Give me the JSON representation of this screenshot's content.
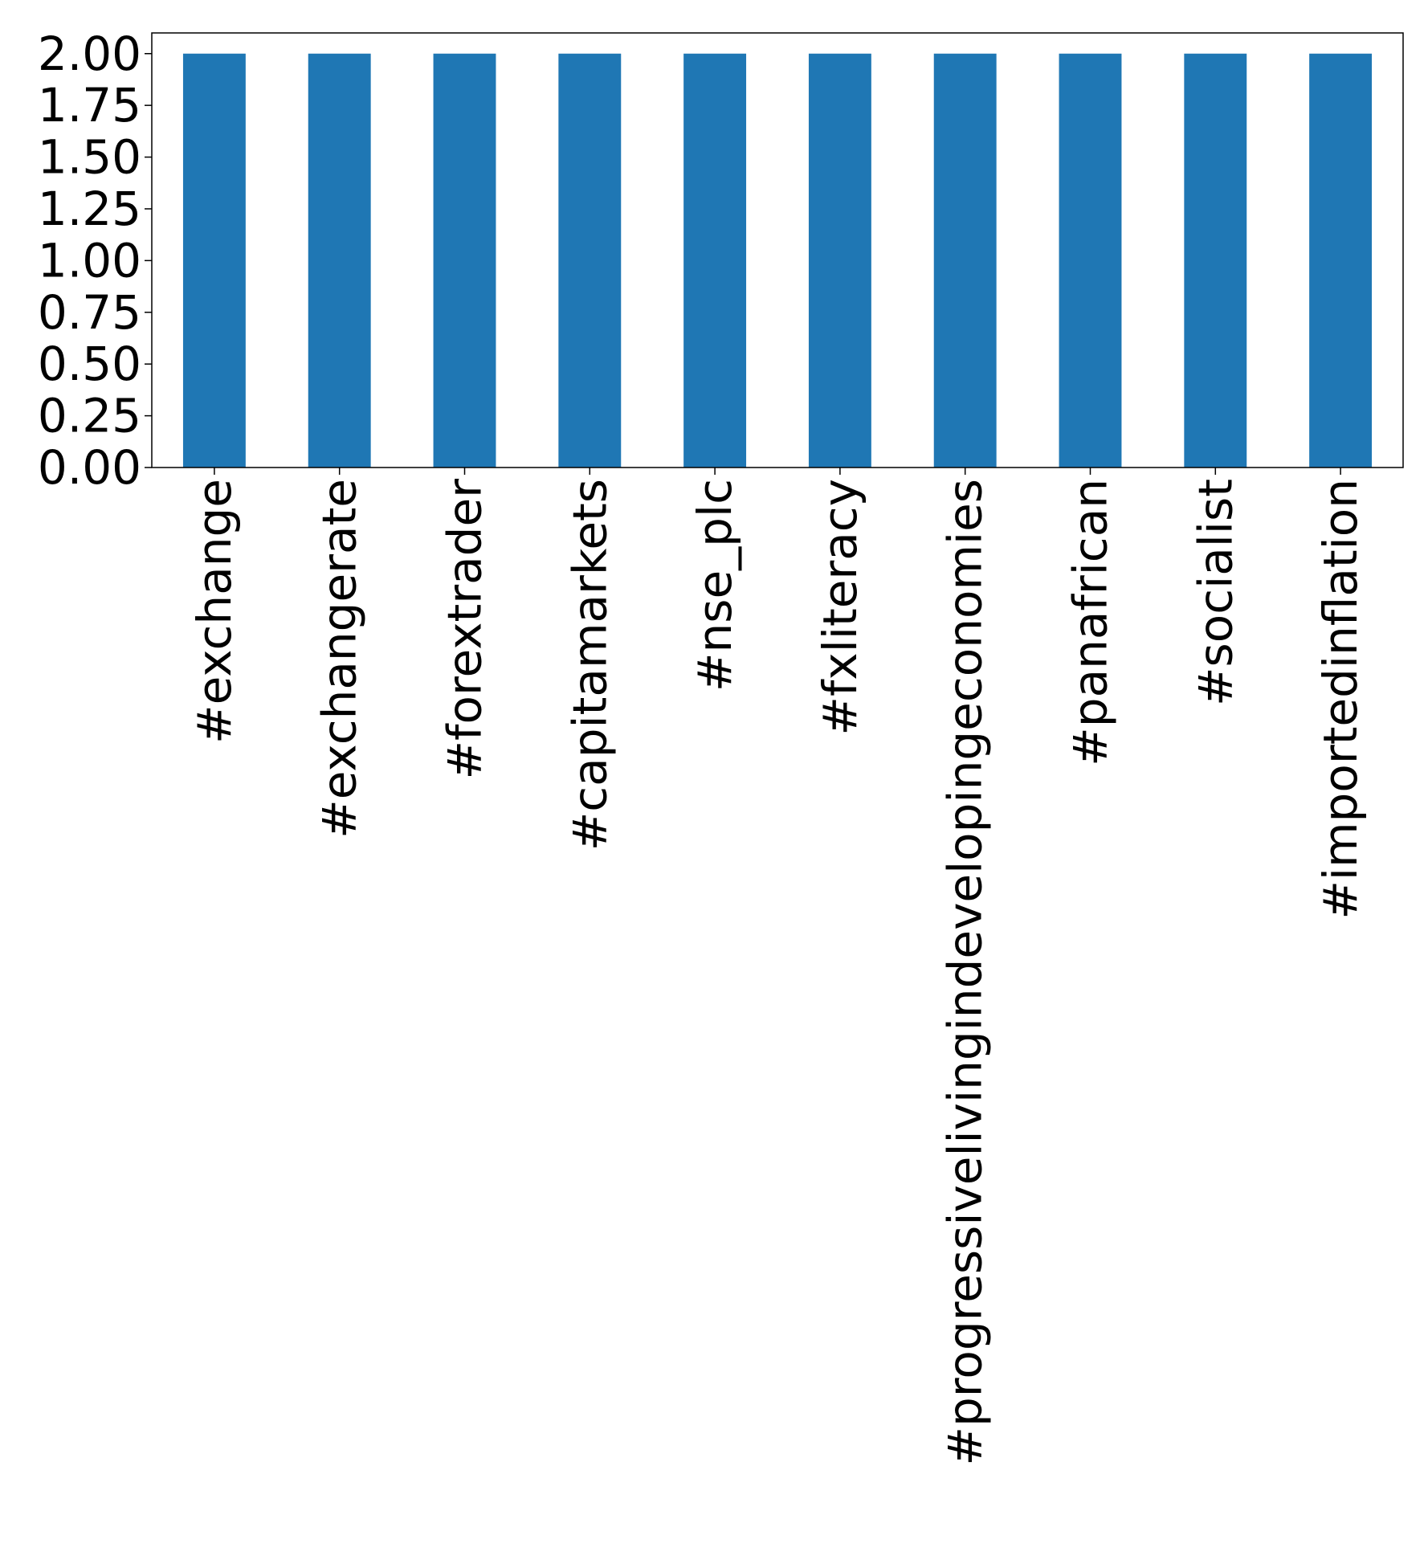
{
  "chart_data": {
    "type": "bar",
    "categories": [
      "#exchange",
      "#exchangerate",
      "#forextrader",
      "#capitamarkets",
      "#nse_plc",
      "#fxliteracy",
      "#progressivelivingindevelopingeconomies",
      "#panafrican",
      "#socialist",
      "#importedinflation"
    ],
    "values": [
      2,
      2,
      2,
      2,
      2,
      2,
      2,
      2,
      2,
      2
    ],
    "title": "",
    "xlabel": "",
    "ylabel": "",
    "ylim": [
      0,
      2.1
    ],
    "yticks": [
      "0.00",
      "0.25",
      "0.50",
      "0.75",
      "1.00",
      "1.25",
      "1.50",
      "1.75",
      "2.00"
    ],
    "grid": false,
    "legend": "none",
    "colors": {
      "bar": "#1f77b4",
      "axis": "#000000",
      "background": "#ffffff"
    }
  }
}
